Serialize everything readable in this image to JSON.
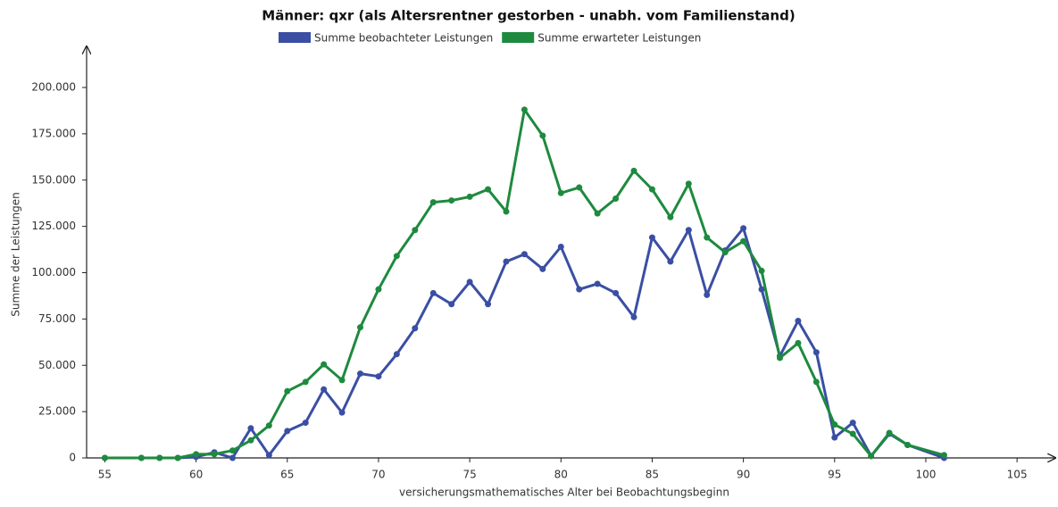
{
  "chart_data": {
    "type": "line",
    "title": "Männer: qxr (als Altersrentner gestorben - unabh. vom Familienstand)",
    "xlabel": "versicherungsmathematisches Alter bei Beobachtungsbeginn",
    "ylabel": "Summe der Leistungen",
    "x": [
      55,
      57,
      58,
      59,
      60,
      61,
      62,
      63,
      64,
      65,
      66,
      67,
      68,
      69,
      70,
      71,
      72,
      73,
      74,
      75,
      76,
      77,
      78,
      79,
      80,
      81,
      82,
      83,
      84,
      85,
      86,
      87,
      88,
      89,
      90,
      91,
      92,
      93,
      94,
      95,
      96,
      97,
      98,
      99,
      101
    ],
    "series": [
      {
        "name": "Summe beobachteter Leistungen",
        "color": "#3a4fa3",
        "values": [
          0,
          0,
          0,
          0,
          500,
          3000,
          0,
          16000,
          1500,
          14500,
          19000,
          37000,
          24500,
          45500,
          44000,
          56000,
          70000,
          89000,
          83000,
          95000,
          83000,
          106000,
          110000,
          102000,
          114000,
          91000,
          94000,
          89000,
          76000,
          119000,
          106000,
          123000,
          88000,
          112000,
          124000,
          91000,
          55000,
          74000,
          57000,
          11000,
          19000,
          1000,
          13000,
          7000,
          0
        ]
      },
      {
        "name": "Summe erwarteter Leistungen",
        "color": "#1e8a3f",
        "values": [
          0,
          0,
          0,
          0,
          2000,
          2000,
          4000,
          9500,
          17500,
          36000,
          41000,
          50500,
          42000,
          70500,
          91000,
          109000,
          123000,
          138000,
          139000,
          141000,
          145000,
          133000,
          188000,
          174000,
          143000,
          146000,
          132000,
          140000,
          155000,
          145000,
          130000,
          148000,
          119000,
          111000,
          117000,
          101000,
          54000,
          62000,
          41000,
          18000,
          13000,
          1000,
          13500,
          7000,
          1500
        ]
      }
    ],
    "xlim": [
      54,
      107
    ],
    "ylim": [
      0,
      220000
    ],
    "xticks": [
      55,
      60,
      65,
      70,
      75,
      80,
      85,
      90,
      95,
      100,
      105
    ],
    "yticks": [
      0,
      {
        "value": 25000,
        "label": "25.000"
      },
      {
        "value": 50000,
        "label": "50.000"
      },
      {
        "value": 75000,
        "label": "75.000"
      },
      {
        "value": 100000,
        "label": "100.000"
      },
      {
        "value": 125000,
        "label": "125.000"
      },
      {
        "value": 150000,
        "label": "150.000"
      },
      {
        "value": 175000,
        "label": "175.000"
      },
      {
        "value": 200000,
        "label": "200.000"
      }
    ]
  }
}
